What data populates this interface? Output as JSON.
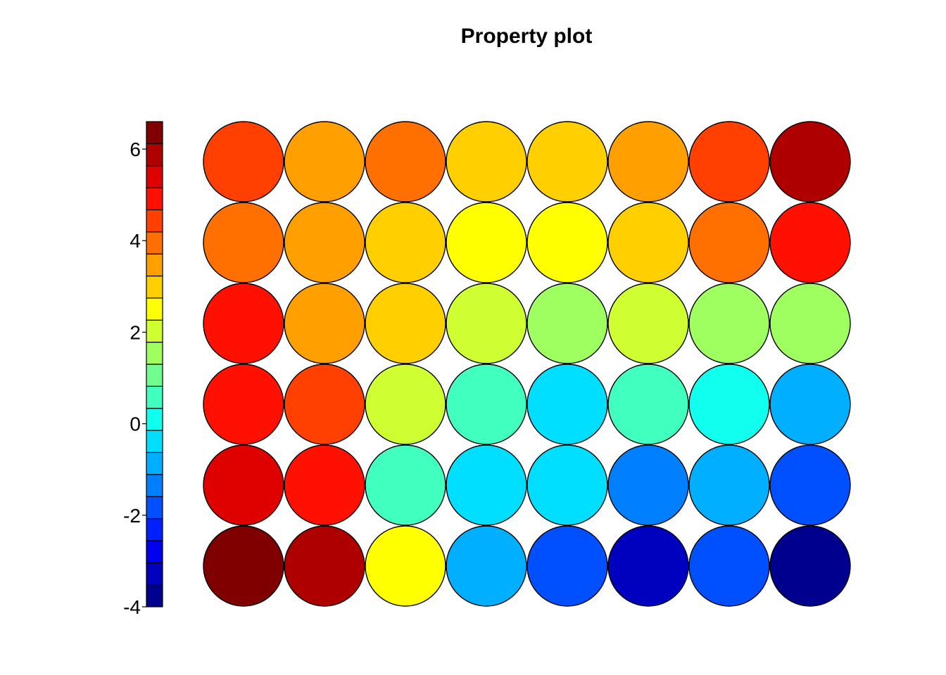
{
  "chart_data": {
    "type": "heatmap",
    "title": "Property plot",
    "xlabel": "",
    "ylabel": "",
    "legend": "colorbar-left",
    "grid": false,
    "colorbar": {
      "range": [
        -4,
        6.6
      ],
      "ticks": [
        -4,
        -2,
        0,
        2,
        4,
        6
      ],
      "tick_labels": [
        "-4",
        "-2",
        "0",
        "2",
        "4",
        "6"
      ],
      "colors": [
        "#00008f",
        "#0000bf",
        "#0000ef",
        "#0020ff",
        "#0050ff",
        "#0080ff",
        "#00afff",
        "#00dfff",
        "#10ffef",
        "#40ffbf",
        "#70ff8f",
        "#9fff60",
        "#cfff30",
        "#ffff00",
        "#ffcf00",
        "#ff9f00",
        "#ff7000",
        "#ff4000",
        "#ff1000",
        "#df0000",
        "#af0000",
        "#800000"
      ]
    },
    "rows": 6,
    "cols": 8,
    "values": [
      [
        4.5,
        3.6,
        4.1,
        2.9,
        2.9,
        3.6,
        4.5,
        5.9
      ],
      [
        4.1,
        3.6,
        2.9,
        2.4,
        2.4,
        2.9,
        4.1,
        5.1
      ],
      [
        5.1,
        3.6,
        2.9,
        1.9,
        1.4,
        1.9,
        1.4,
        1.4
      ],
      [
        5.1,
        4.5,
        1.9,
        0.8,
        -0.2,
        0.8,
        0.2,
        -0.8
      ],
      [
        5.5,
        5.1,
        0.8,
        -0.2,
        -0.2,
        -1.3,
        -0.8,
        -1.8
      ],
      [
        6.4,
        5.9,
        2.4,
        -0.8,
        -1.8,
        -3.3,
        -1.8,
        -3.8
      ]
    ]
  }
}
